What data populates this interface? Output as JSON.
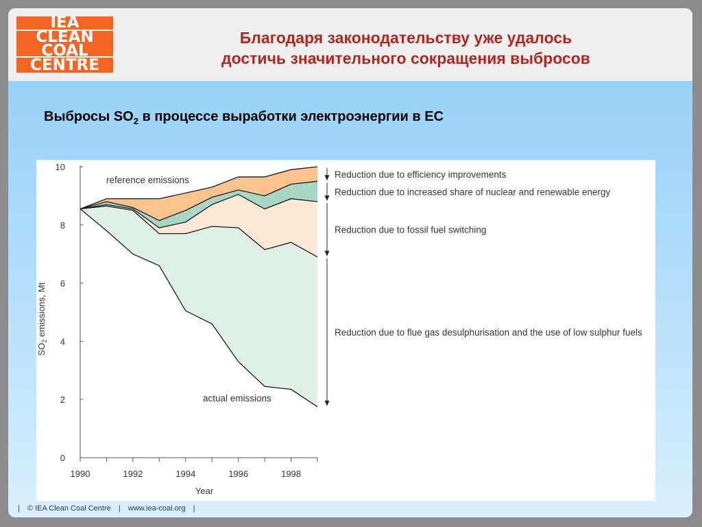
{
  "header": {
    "title_lines": [
      "Благодаря законодательству уже удалось",
      "достичь значительного сокращения выбросов"
    ],
    "logo_lines": [
      "IEA",
      "CLEAN",
      "COAL",
      "CENTRE"
    ]
  },
  "subtitle": {
    "prefix": "Выбросы SO",
    "sub": "2",
    "suffix": " в процессе выработки электроэнергии в ЕС"
  },
  "footer": {
    "sep": "|",
    "copyright": "© IEA Clean Coal Centre",
    "url": "www.iea-coal.org"
  },
  "colors": {
    "efficiency": "#fbc48e",
    "nuclear_renewable": "#a8d8c3",
    "fossil_switching": "#fde8d6",
    "fgd": "#dff0e6"
  },
  "chart_data": {
    "type": "area",
    "ylabel_prefix": "SO",
    "ylabel_sub": "2",
    "ylabel_suffix": " emissions, Mt",
    "xlabel": "Year",
    "xlim": [
      1990,
      1999
    ],
    "ylim": [
      0,
      10
    ],
    "x_ticks": [
      "1990",
      "1992",
      "1994",
      "1996",
      "1998"
    ],
    "y_ticks": [
      "0",
      "2",
      "4",
      "6",
      "8",
      "10"
    ],
    "x": [
      1990,
      1991,
      1992,
      1993,
      1994,
      1995,
      1996,
      1997,
      1998,
      1999
    ],
    "series": [
      {
        "key": "reference",
        "values": [
          8.55,
          8.9,
          8.9,
          8.9,
          9.1,
          9.3,
          9.65,
          9.65,
          9.9,
          10.0
        ]
      },
      {
        "key": "after_efficiency",
        "values": [
          8.55,
          8.8,
          8.6,
          8.15,
          8.5,
          8.95,
          9.2,
          9.0,
          9.4,
          9.5
        ]
      },
      {
        "key": "after_nuclear_renewable",
        "values": [
          8.55,
          8.7,
          8.55,
          7.9,
          8.1,
          8.7,
          9.05,
          8.55,
          8.9,
          8.8
        ]
      },
      {
        "key": "after_fossil_switching",
        "values": [
          8.55,
          8.65,
          8.5,
          7.7,
          7.7,
          7.95,
          7.9,
          7.15,
          7.4,
          6.9
        ]
      },
      {
        "key": "actual",
        "values": [
          8.55,
          7.8,
          7.0,
          6.6,
          5.05,
          4.6,
          3.3,
          2.45,
          2.35,
          1.75
        ]
      }
    ],
    "curve_labels": {
      "reference": "reference emissions",
      "actual": "actual emissions"
    },
    "annotations": [
      {
        "text": "Reduction due to efficiency improvements",
        "from": 10.0,
        "to": 9.5
      },
      {
        "text": "Reduction due to increased share of nuclear and renewable energy",
        "from": 9.5,
        "to": 8.8
      },
      {
        "text": "Reduction due to fossil fuel switching",
        "from": 8.8,
        "to": 6.9
      },
      {
        "text": "Reduction due to flue gas desulphurisation and the use of low sulphur fuels",
        "from": 6.9,
        "to": 1.75
      }
    ]
  }
}
